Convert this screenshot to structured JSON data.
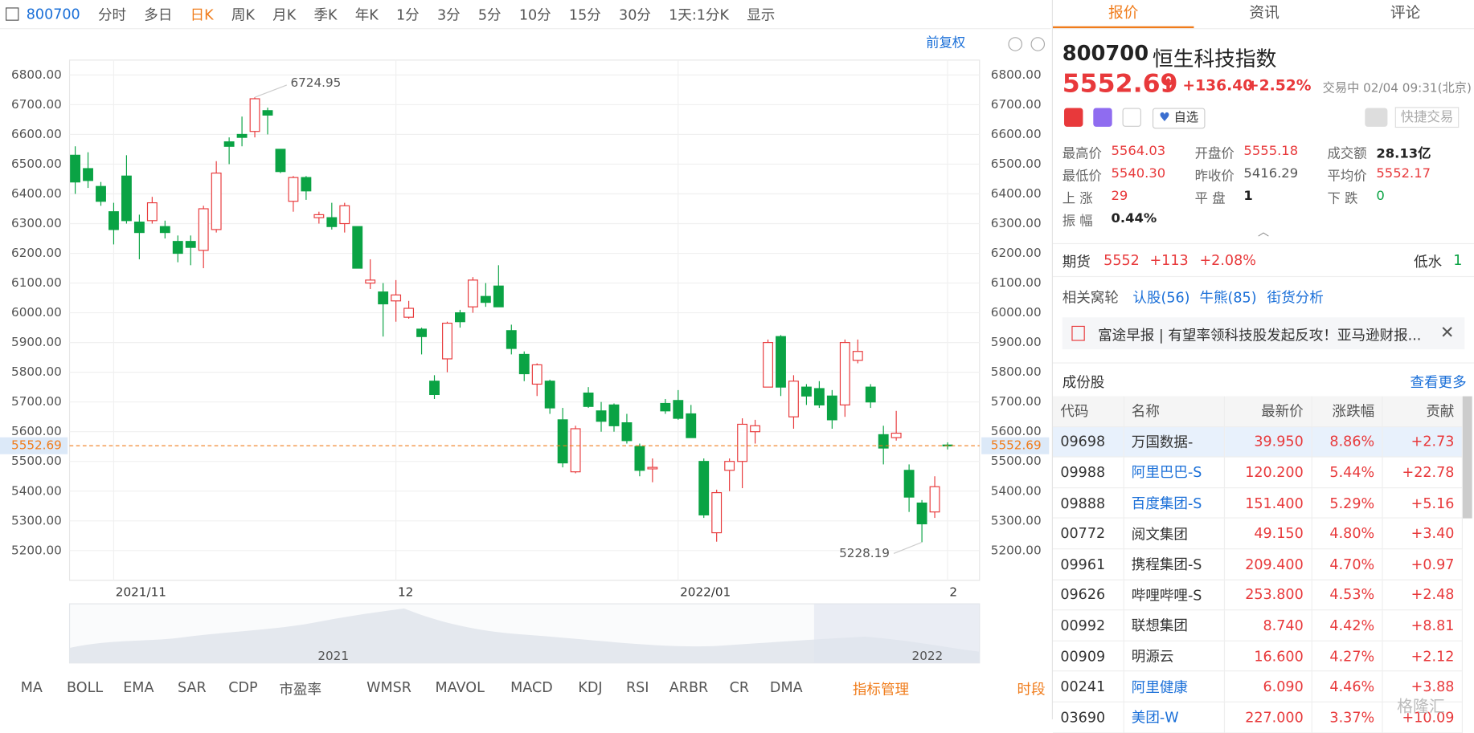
{
  "toolbar": {
    "code": "800700",
    "tabs": [
      "分时",
      "多日",
      "日K",
      "周K",
      "月K",
      "季K",
      "年K",
      "1分",
      "3分",
      "5分",
      "10分",
      "15分",
      "30分"
    ],
    "active_tab": 2,
    "period": "1天:1分K",
    "display": "显示"
  },
  "chart_data": {
    "type": "candlestick",
    "adjust": "前复权",
    "categories": [
      null,
      null,
      null,
      "2021/11",
      null,
      null,
      null,
      null,
      null,
      null,
      null,
      null,
      null,
      null,
      null,
      null,
      null,
      null,
      null,
      null,
      null,
      null,
      null,
      null,
      null,
      "12",
      null,
      null,
      null,
      null,
      null,
      null,
      null,
      null,
      null,
      null,
      null,
      null,
      null,
      null,
      null,
      null,
      null,
      null,
      null,
      null,
      null,
      "2022/01",
      null,
      null,
      null,
      null,
      null,
      null,
      null,
      null,
      null,
      null,
      null,
      null,
      null,
      null,
      null,
      null,
      null,
      null,
      null,
      null,
      "2"
    ],
    "open": [
      6530,
      6485,
      6425,
      6340,
      6460,
      6305,
      6310,
      6290,
      6240,
      6240,
      6210,
      6280,
      6575,
      6600,
      6610,
      6680,
      6550,
      6375,
      6455,
      6320,
      6320,
      6300,
      6290,
      6100,
      6070,
      6040,
      5985,
      5945,
      5770,
      5845,
      6000,
      6020,
      6055,
      6090,
      5940,
      5860,
      5760,
      5770,
      5640,
      5465,
      5730,
      5670,
      5690,
      5630,
      5550,
      5475,
      5695,
      5705,
      5660,
      5500,
      5260,
      5470,
      5500,
      5600,
      5750,
      5920,
      5650,
      5750,
      5745,
      5720,
      5690,
      5840,
      5750,
      5590,
      5580,
      5470,
      5360,
      5330,
      5555.18
    ],
    "close": [
      6440,
      6445,
      6375,
      6280,
      6310,
      6270,
      6370,
      6270,
      6200,
      6220,
      6350,
      6470,
      6560,
      6590,
      6720,
      6665,
      6475,
      6455,
      6410,
      6330,
      6290,
      6360,
      6150,
      6110,
      6030,
      6060,
      6015,
      5920,
      5725,
      5965,
      5970,
      6110,
      6035,
      6020,
      5880,
      5795,
      5825,
      5680,
      5495,
      5610,
      5685,
      5635,
      5620,
      5570,
      5470,
      5480,
      5670,
      5645,
      5580,
      5320,
      5395,
      5500,
      5625,
      5620,
      5900,
      5750,
      5770,
      5720,
      5690,
      5640,
      5900,
      5870,
      5700,
      5545,
      5595,
      5380,
      5290,
      5415,
      5552.69
    ],
    "high": [
      6560,
      6540,
      6440,
      6370,
      6530,
      6330,
      6390,
      6310,
      6260,
      6260,
      6360,
      6510,
      6590,
      6660,
      6724.95,
      6690,
      6550,
      6460,
      6460,
      6340,
      6370,
      6370,
      6290,
      6180,
      6100,
      6110,
      6040,
      5950,
      5790,
      5970,
      6010,
      6120,
      6100,
      6160,
      5960,
      5870,
      5830,
      5775,
      5680,
      5620,
      5750,
      5700,
      5695,
      5660,
      5560,
      5510,
      5710,
      5740,
      5690,
      5510,
      5405,
      5510,
      5645,
      5640,
      5910,
      5925,
      5790,
      5760,
      5770,
      5740,
      5910,
      5910,
      5760,
      5620,
      5670,
      5490,
      5370,
      5450,
      5564.03
    ],
    "low": [
      6400,
      6420,
      6360,
      6230,
      6300,
      6180,
      6300,
      6250,
      6170,
      6160,
      6150,
      6270,
      6500,
      6560,
      6590,
      6600,
      6470,
      6340,
      6380,
      6300,
      6280,
      6270,
      6150,
      6080,
      5920,
      5970,
      5980,
      5860,
      5710,
      5800,
      5950,
      6000,
      6020,
      6020,
      5860,
      5770,
      5720,
      5660,
      5480,
      5460,
      5680,
      5600,
      5600,
      5560,
      5450,
      5430,
      5660,
      5640,
      5580,
      5310,
      5230,
      5400,
      5410,
      5560,
      5750,
      5720,
      5610,
      5690,
      5680,
      5610,
      5650,
      5830,
      5680,
      5490,
      5570,
      5330,
      5228.19,
      5310,
      5540.3
    ],
    "up_color": "#e8393b",
    "down_color": "#0aa344",
    "ylim": [
      5100,
      6850
    ],
    "yticks": [
      {
        "value": 5200,
        "label": "5200.00"
      },
      {
        "value": 5300,
        "label": "5300.00"
      },
      {
        "value": 5400,
        "label": "5400.00"
      },
      {
        "value": 5500,
        "label": "5500.00"
      },
      {
        "value": 5600,
        "label": "5600.00"
      },
      {
        "value": 5700,
        "label": "5700.00"
      },
      {
        "value": 5800,
        "label": "5800.00"
      },
      {
        "value": 5900,
        "label": "5900.00"
      },
      {
        "value": 6000,
        "label": "6000.00"
      },
      {
        "value": 6100,
        "label": "6100.00"
      },
      {
        "value": 6200,
        "label": "6200.00"
      },
      {
        "value": 6300,
        "label": "6300.00"
      },
      {
        "value": 6400,
        "label": "6400.00"
      },
      {
        "value": 6500,
        "label": "6500.00"
      },
      {
        "value": 6600,
        "label": "6600.00"
      },
      {
        "value": 6700,
        "label": "6700.00"
      },
      {
        "value": 6800,
        "label": "6800.00"
      }
    ],
    "last_price": 5552.69,
    "max_label": "6724.95",
    "min_label": "5228.19",
    "navigator_labels": [
      "2021",
      "2022"
    ]
  },
  "indicators": [
    "MA",
    "BOLL",
    "EMA",
    "SAR",
    "CDP",
    "市盈率",
    "WMSR",
    "MAVOL",
    "MACD",
    "KDJ",
    "RSI",
    "ARBR",
    "CR",
    "DMA"
  ],
  "indicator_manage": "指标管理",
  "period_tab": "时段",
  "panel": {
    "tabs": [
      "报价",
      "资讯",
      "评论"
    ],
    "code": "800700",
    "name": "恒生科技指数",
    "price": "5552.69",
    "change": "+136.40",
    "pct": "+2.52%",
    "status": "交易中 02/04 09:31(北京)",
    "watch": "自选",
    "quick_trade": "快捷交易",
    "stats": [
      [
        "最高价",
        "5564.03"
      ],
      [
        "开盘价",
        "5555.18"
      ],
      [
        "成交额",
        "28.13亿"
      ],
      [
        "最低价",
        "5540.30"
      ],
      [
        "昨收价",
        "5416.29"
      ],
      [
        "平均价",
        "5552.17"
      ],
      [
        "上 涨",
        "29"
      ],
      [
        "平 盘",
        "1"
      ],
      [
        "下 跌",
        "0"
      ],
      [
        "振 幅",
        "0.44%"
      ]
    ],
    "futures": {
      "label": "期货",
      "price": "5552",
      "change": "+113",
      "pct": "+2.08%",
      "basis_label": "低水",
      "basis": "1"
    },
    "warrants": {
      "label": "相关窝轮",
      "links": [
        "认股(56)",
        "牛熊(85)",
        "街货分析"
      ]
    },
    "news": "富途早报 | 有望率领科技股发起反攻！亚马逊财报...",
    "constituents": {
      "title": "成份股",
      "more": "查看更多",
      "columns": [
        "代码",
        "名称",
        "最新价",
        "涨跌幅",
        "贡献"
      ],
      "rows": [
        {
          "cells": [
            "09698",
            "万国数据-",
            "39.950",
            "8.86%",
            "+2.73"
          ],
          "color": "#333"
        },
        {
          "cells": [
            "09988",
            "阿里巴巴-S",
            "120.200",
            "5.44%",
            "+22.78"
          ],
          "color": "#1a6fd8"
        },
        {
          "cells": [
            "09888",
            "百度集团-S",
            "151.400",
            "5.29%",
            "+5.16"
          ],
          "color": "#1a6fd8"
        },
        {
          "cells": [
            "00772",
            "阅文集团",
            "49.150",
            "4.80%",
            "+3.40"
          ],
          "color": "#333"
        },
        {
          "cells": [
            "09961",
            "携程集团-S",
            "209.400",
            "4.70%",
            "+0.97"
          ],
          "color": "#333"
        },
        {
          "cells": [
            "09626",
            "哔哩哔哩-S",
            "253.800",
            "4.53%",
            "+2.48"
          ],
          "color": "#333"
        },
        {
          "cells": [
            "00992",
            "联想集团",
            "8.740",
            "4.42%",
            "+8.81"
          ],
          "color": "#333"
        },
        {
          "cells": [
            "00909",
            "明源云",
            "16.600",
            "4.27%",
            "+2.12"
          ],
          "color": "#333"
        },
        {
          "cells": [
            "00241",
            "阿里健康",
            "6.090",
            "4.46%",
            "+3.88"
          ],
          "color": "#1a6fd8"
        },
        {
          "cells": [
            "03690",
            "美团-W",
            "227.000",
            "3.37%",
            "+10.09"
          ],
          "color": "#1a6fd8"
        }
      ]
    }
  },
  "watermark": "格隆汇"
}
